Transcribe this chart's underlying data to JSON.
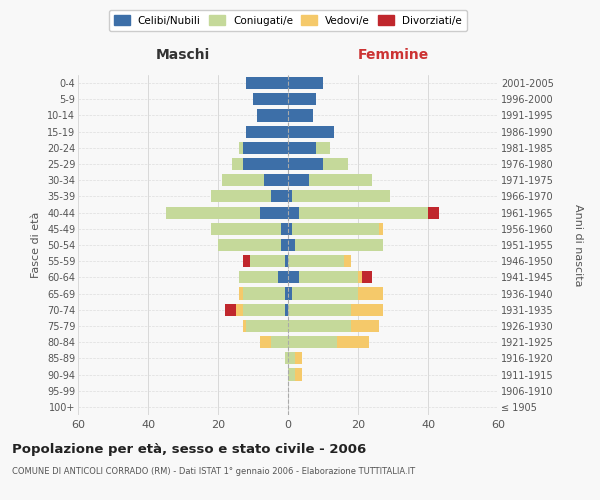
{
  "age_groups": [
    "100+",
    "95-99",
    "90-94",
    "85-89",
    "80-84",
    "75-79",
    "70-74",
    "65-69",
    "60-64",
    "55-59",
    "50-54",
    "45-49",
    "40-44",
    "35-39",
    "30-34",
    "25-29",
    "20-24",
    "15-19",
    "10-14",
    "5-9",
    "0-4"
  ],
  "birth_years": [
    "≤ 1905",
    "1906-1910",
    "1911-1915",
    "1916-1920",
    "1921-1925",
    "1926-1930",
    "1931-1935",
    "1936-1940",
    "1941-1945",
    "1946-1950",
    "1951-1955",
    "1956-1960",
    "1961-1965",
    "1966-1970",
    "1971-1975",
    "1976-1980",
    "1981-1985",
    "1986-1990",
    "1991-1995",
    "1996-2000",
    "2001-2005"
  ],
  "colors": {
    "celibi": "#3d6fa8",
    "coniugati": "#c5d99a",
    "vedovi": "#f5c96a",
    "divorziati": "#c0272d"
  },
  "maschi": {
    "celibi": [
      0,
      0,
      0,
      0,
      0,
      0,
      1,
      1,
      3,
      1,
      2,
      2,
      8,
      5,
      7,
      13,
      13,
      12,
      9,
      10,
      12
    ],
    "coniugati": [
      0,
      0,
      0,
      1,
      5,
      12,
      12,
      12,
      11,
      10,
      18,
      20,
      27,
      17,
      12,
      3,
      1,
      0,
      0,
      0,
      0
    ],
    "vedovi": [
      0,
      0,
      0,
      0,
      3,
      1,
      2,
      1,
      0,
      0,
      0,
      0,
      0,
      0,
      0,
      0,
      0,
      0,
      0,
      0,
      0
    ],
    "divorziati": [
      0,
      0,
      0,
      0,
      0,
      0,
      3,
      0,
      0,
      2,
      0,
      0,
      0,
      0,
      0,
      0,
      0,
      0,
      0,
      0,
      0
    ]
  },
  "femmine": {
    "celibi": [
      0,
      0,
      0,
      0,
      0,
      0,
      0,
      1,
      3,
      0,
      2,
      1,
      3,
      1,
      6,
      10,
      8,
      13,
      7,
      8,
      10
    ],
    "coniugati": [
      0,
      0,
      2,
      2,
      14,
      18,
      18,
      19,
      17,
      16,
      25,
      25,
      37,
      28,
      18,
      7,
      4,
      0,
      0,
      0,
      0
    ],
    "vedovi": [
      0,
      0,
      2,
      2,
      9,
      8,
      9,
      7,
      1,
      2,
      0,
      1,
      0,
      0,
      0,
      0,
      0,
      0,
      0,
      0,
      0
    ],
    "divorziati": [
      0,
      0,
      0,
      0,
      0,
      0,
      0,
      0,
      3,
      0,
      0,
      0,
      3,
      0,
      0,
      0,
      0,
      0,
      0,
      0,
      0
    ]
  },
  "xlim": 60,
  "title": "Popolazione per età, sesso e stato civile - 2006",
  "subtitle": "COMUNE DI ANTICOLI CORRADO (RM) - Dati ISTAT 1° gennaio 2006 - Elaborazione TUTTITALIA.IT",
  "ylabel_left": "Fasce di età",
  "ylabel_right": "Anni di nascita",
  "xlabel_left": "Maschi",
  "xlabel_right": "Femmine",
  "legend_labels": [
    "Celibi/Nubili",
    "Coniugati/e",
    "Vedovi/e",
    "Divorziati/e"
  ],
  "bg_color": "#f8f8f8",
  "bar_height": 0.75
}
